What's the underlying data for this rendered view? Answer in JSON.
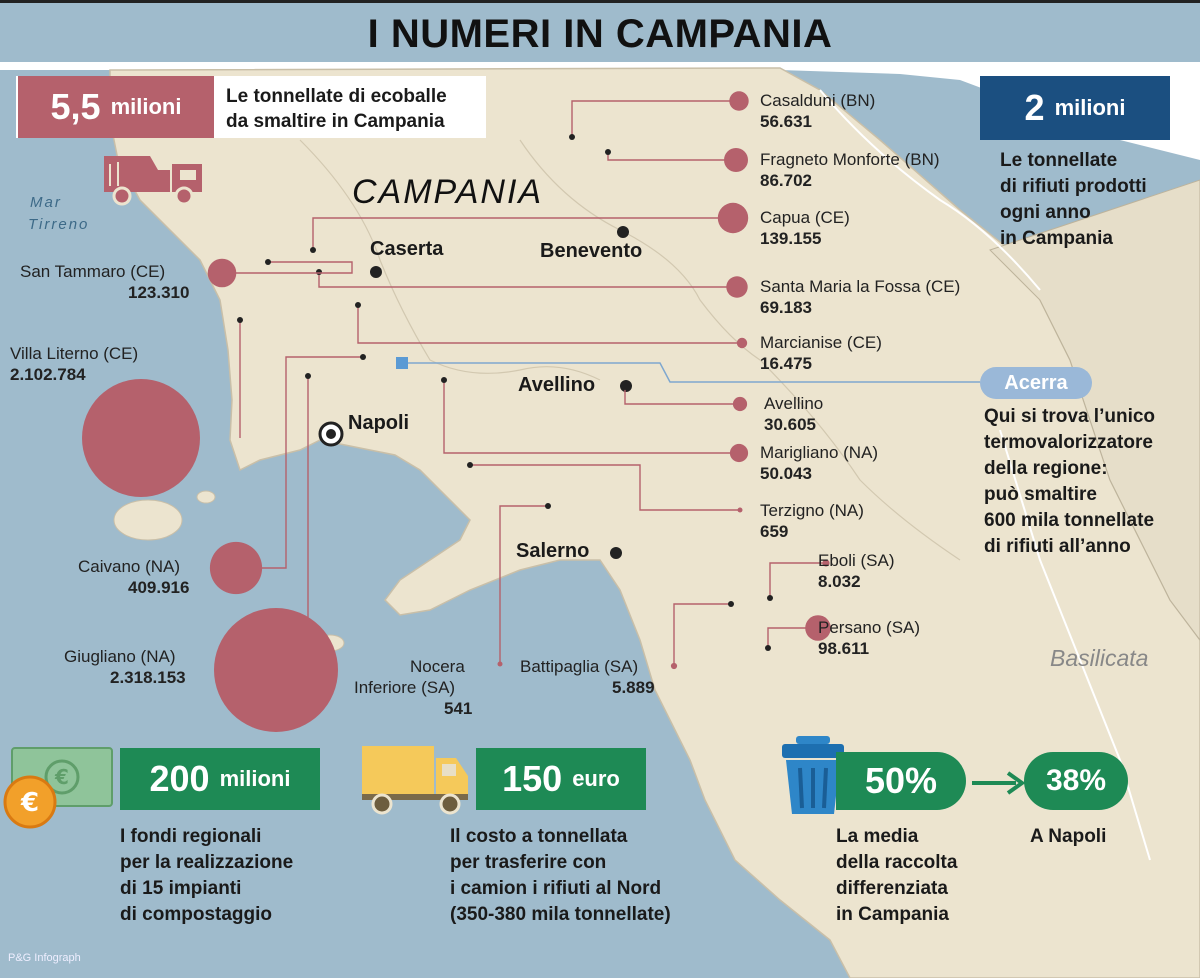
{
  "title": "I NUMERI IN CAMPANIA",
  "credit": "P&G Infograph",
  "regions": {
    "campania": "CAMPANIA",
    "sea": [
      "Mar",
      "Tirreno"
    ],
    "basilicata": "Basilicata"
  },
  "cities": {
    "caserta": "Caserta",
    "benevento": "Benevento",
    "napoli": "Napoli",
    "avellino": "Avellino",
    "salerno": "Salerno"
  },
  "stats": {
    "ecoballe": {
      "big": "5,5",
      "small": "milioni",
      "desc": [
        "Le tonnellate di ecoballe",
        "da smaltire in Campania"
      ]
    },
    "rifiuti": {
      "big": "2",
      "small": "milioni",
      "desc": [
        "Le tonnellate",
        "di rifiuti prodotti",
        "ogni anno",
        "in Campania"
      ]
    },
    "fondi": {
      "big": "200",
      "small": "milioni",
      "desc": [
        "I fondi regionali",
        "per la realizzazione",
        "di 15 impianti",
        "di compostaggio"
      ]
    },
    "costo": {
      "big": "150",
      "small": "euro",
      "desc": [
        "Il costo a tonnellata",
        "per trasferire con",
        "i camion i rifiuti al Nord",
        "(350-380 mila tonnellate)"
      ]
    },
    "differenziata": {
      "big": "50%",
      "desc": [
        "La media",
        "della raccolta",
        "differenziata",
        "in Campania"
      ]
    },
    "napoli": {
      "big": "38%",
      "desc": [
        "A Napoli"
      ]
    }
  },
  "acerra": {
    "label": "Acerra",
    "desc": [
      "Qui si trova l’unico",
      "termovalorizzatore",
      "della regione:",
      "può smaltire",
      "600 mila tonnellate",
      "di rifiuti all’anno"
    ]
  },
  "sites": [
    {
      "name": "Casalduni (BN)",
      "value": "56.631",
      "tonnes": 56631
    },
    {
      "name": "Fragneto Monforte (BN)",
      "value": "86.702",
      "tonnes": 86702
    },
    {
      "name": "Capua (CE)",
      "value": "139.155",
      "tonnes": 139155
    },
    {
      "name": "Santa Maria la Fossa (CE)",
      "value": "69.183",
      "tonnes": 69183
    },
    {
      "name": "Marcianise (CE)",
      "value": "16.475",
      "tonnes": 16475
    },
    {
      "name": "Avellino",
      "value": "30.605",
      "tonnes": 30605
    },
    {
      "name": "Marigliano (NA)",
      "value": "50.043",
      "tonnes": 50043
    },
    {
      "name": "Terzigno (NA)",
      "value": "659",
      "tonnes": 659
    },
    {
      "name": "Eboli (SA)",
      "value": "8.032",
      "tonnes": 8032
    },
    {
      "name": "Persano (SA)",
      "value": "98.611",
      "tonnes": 98611
    },
    {
      "name": "San Tammaro (CE)",
      "value": "123.310",
      "tonnes": 123310
    },
    {
      "name": "Villa Literno (CE)",
      "value": "2.102.784",
      "tonnes": 2102784
    },
    {
      "name": "Caivano (NA)",
      "value": "409.916",
      "tonnes": 409916
    },
    {
      "name": "Giugliano (NA)",
      "value": "2.318.153",
      "tonnes": 2318153
    },
    {
      "name": "Nocera Inferiore (SA)",
      "value": "541",
      "tonnes": 541
    },
    {
      "name": "Battipaglia (SA)",
      "value": "5.889",
      "tonnes": 5889
    }
  ],
  "colors": {
    "sea": "#9fbbcc",
    "land": "#ece4cf",
    "bubble": "#b5616c",
    "red_badge": "#b5616c",
    "blue_badge": "#1b4f80",
    "green_badge": "#1e8a55",
    "acerra": "#9ab8d8"
  },
  "icons": {
    "truck_small": "garbage-truck-icon",
    "money": "money-icon",
    "truck_big": "truck-icon",
    "bin": "recycle-bin-icon",
    "arrow": "arrow-right-icon"
  }
}
